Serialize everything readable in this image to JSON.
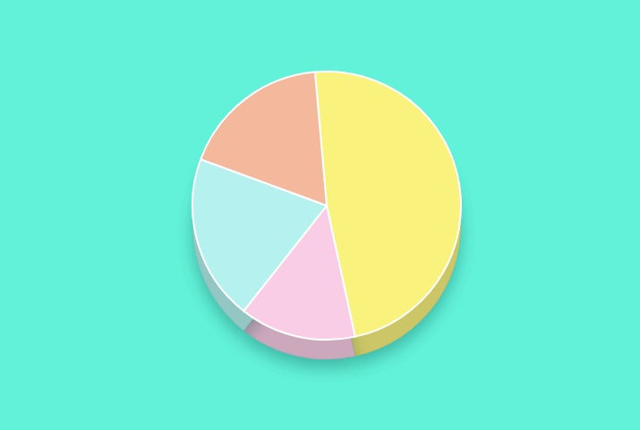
{
  "chart_data": {
    "type": "pie",
    "values": [
      48,
      14,
      20,
      18
    ],
    "colors": [
      "#f9f27c",
      "#f9cde6",
      "#b5f1ee",
      "#f4b89c"
    ],
    "data_labels": false
  }
}
